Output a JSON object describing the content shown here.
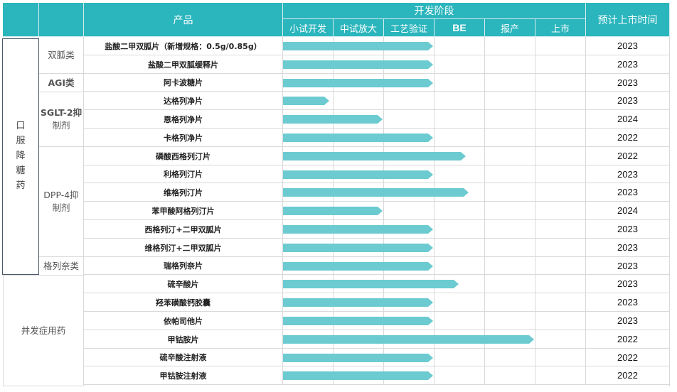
{
  "header": {
    "product": "产品",
    "stage_group": "开发阶段",
    "stages": [
      "小试开发",
      "中试放大",
      "工艺验证",
      "BE",
      "报产",
      "上市"
    ],
    "launch": "预计上市时间"
  },
  "colors": {
    "header_bg": "#2bb5bd",
    "bar": "#6ccbd1",
    "grid": "#d9d9d9",
    "frame": "#4a5a6a"
  },
  "groups": [
    {
      "label": "口服降糖药",
      "chars": [
        "口",
        "服",
        "降",
        "糖",
        "药"
      ]
    },
    {
      "label": "并发症用药"
    }
  ],
  "subgroups": [
    {
      "label": "双胍类"
    },
    {
      "label": "AGI类"
    },
    {
      "label_line1": "SGLT-2抑",
      "label_line2": "制剂"
    },
    {
      "label_line1": "DPP-4抑",
      "label_line2": "制剂"
    },
    {
      "label": "格列奈类"
    }
  ],
  "rows": [
    {
      "product": "盐酸二甲双胍片（新增规格：0.5g/0.85g）",
      "stage_progress": 3.0,
      "launch": "2023"
    },
    {
      "product": "盐酸二甲双胍缓释片",
      "stage_progress": 3.0,
      "launch": "2023"
    },
    {
      "product": "阿卡波糖片",
      "stage_progress": 3.0,
      "launch": "2023"
    },
    {
      "product": "达格列净片",
      "stage_progress": 0.95,
      "launch": "2023"
    },
    {
      "product": "恩格列净片",
      "stage_progress": 2.0,
      "launch": "2024"
    },
    {
      "product": "卡格列净片",
      "stage_progress": 3.0,
      "launch": "2022"
    },
    {
      "product": "磷酸西格列汀片",
      "stage_progress": 3.65,
      "launch": "2022"
    },
    {
      "product": "利格列汀片",
      "stage_progress": 3.0,
      "launch": "2023"
    },
    {
      "product": "维格列汀片",
      "stage_progress": 3.7,
      "launch": "2023"
    },
    {
      "product": "苯甲酸阿格列汀片",
      "stage_progress": 2.0,
      "launch": "2024"
    },
    {
      "product": "西格列汀+二甲双胍片",
      "stage_progress": 3.0,
      "launch": "2023"
    },
    {
      "product": "维格列汀+二甲双胍片",
      "stage_progress": 3.0,
      "launch": "2023"
    },
    {
      "product": "瑞格列奈片",
      "stage_progress": 3.0,
      "launch": "2023"
    },
    {
      "product": "硫辛酸片",
      "stage_progress": 3.5,
      "launch": "2023"
    },
    {
      "product": "羟苯磺酸钙胶囊",
      "stage_progress": 3.0,
      "launch": "2023"
    },
    {
      "product": "依帕司他片",
      "stage_progress": 3.0,
      "launch": "2023"
    },
    {
      "product": "甲钴胺片",
      "stage_progress": 5.0,
      "launch": "2022"
    },
    {
      "product": "硫辛酸注射液",
      "stage_progress": 3.0,
      "launch": "2022"
    },
    {
      "product": "甲钴胺注射液",
      "stage_progress": 3.0,
      "launch": "2022"
    }
  ],
  "chart_data": {
    "type": "table",
    "title": "开发阶段",
    "columns": [
      "产品",
      "小试开发",
      "中试放大",
      "工艺验证",
      "BE",
      "报产",
      "上市",
      "预计上市时间"
    ],
    "categories": [
      "盐酸二甲双胍片（新增规格：0.5g/0.85g）",
      "盐酸二甲双胍缓释片",
      "阿卡波糖片",
      "达格列净片",
      "恩格列净片",
      "卡格列净片",
      "磷酸西格列汀片",
      "利格列汀片",
      "维格列汀片",
      "苯甲酸阿格列汀片",
      "西格列汀+二甲双胍片",
      "维格列汀+二甲双胍片",
      "瑞格列奈片",
      "硫辛酸片",
      "羟苯磺酸钙胶囊",
      "依帕司他片",
      "甲钴胺片",
      "硫辛酸注射液",
      "甲钴胺注射液"
    ],
    "series": [
      {
        "name": "stage_progress (stages completed, 0-6)",
        "values": [
          3.0,
          3.0,
          3.0,
          0.95,
          2.0,
          3.0,
          3.65,
          3.0,
          3.7,
          2.0,
          3.0,
          3.0,
          3.0,
          3.5,
          3.0,
          3.0,
          5.0,
          3.0,
          3.0
        ]
      },
      {
        "name": "预计上市时间",
        "values": [
          2023,
          2023,
          2023,
          2023,
          2024,
          2022,
          2022,
          2023,
          2023,
          2024,
          2023,
          2023,
          2023,
          2023,
          2023,
          2023,
          2022,
          2022,
          2022
        ]
      }
    ]
  }
}
